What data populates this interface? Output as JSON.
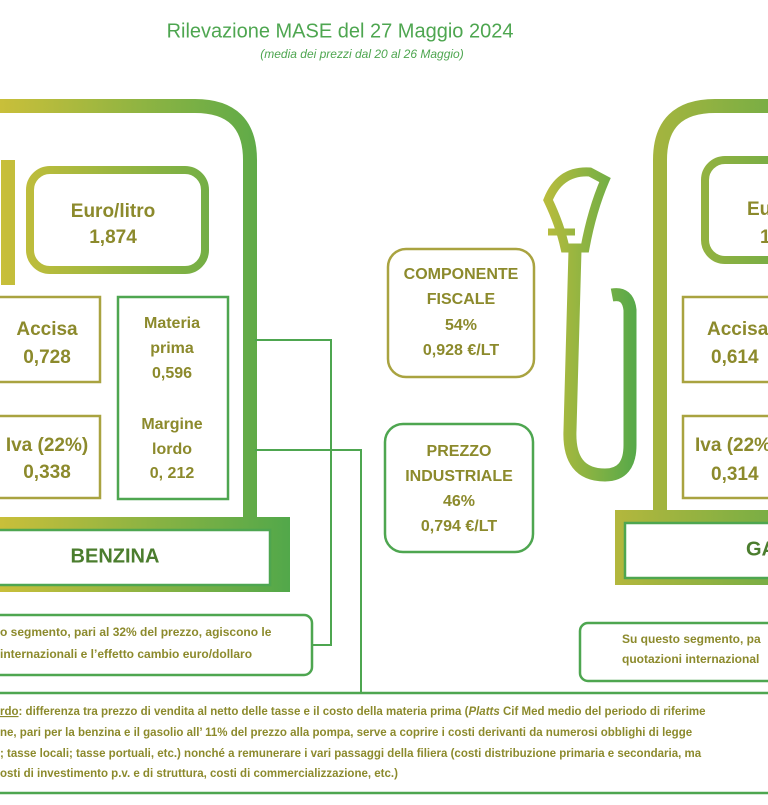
{
  "header": {
    "title": "Rilevazione MASE del 27 Maggio 2024",
    "subtitle": "(media dei prezzi dal 20 al 26 Maggio)"
  },
  "benzina": {
    "display": {
      "unit": "Euro/litro",
      "price": "1,874"
    },
    "accisa": {
      "label": "Accisa",
      "value": "0,728"
    },
    "iva": {
      "label": "Iva (22%)",
      "value": "0,338"
    },
    "materia_prima": {
      "label_lines": [
        "Materia",
        "prima"
      ],
      "value": "0,596"
    },
    "margine_lordo": {
      "label_lines": [
        "Margine",
        "lordo"
      ],
      "value": "0, 212"
    },
    "name": "BENZINA",
    "note_lines": [
      "o segmento, pari al 32% del prezzo, agiscono le",
      "internazionali e l’effetto cambio euro/dollaro"
    ]
  },
  "center": {
    "componente_fiscale": {
      "label_lines": [
        "COMPONENTE",
        "FISCALE"
      ],
      "percent": "54%",
      "amount": "0,928 €/LT"
    },
    "prezzo_industriale": {
      "label_lines": [
        "PREZZO",
        "INDUSTRIALE"
      ],
      "percent": "46%",
      "amount": "0,794 €/LT"
    }
  },
  "gasolio": {
    "display": {
      "unit": "Eur",
      "price": "1"
    },
    "accisa": {
      "label": "Accisa",
      "value": "0,614"
    },
    "iva": {
      "label": "Iva (22%",
      "value": "0,314"
    },
    "name": "GA",
    "note_lines": [
      "Su questo segmento, pa",
      "quotazioni internazional"
    ]
  },
  "footnote": {
    "lines": [
      [
        "rdo",
        ": differenza tra prezzo di vendita al netto delle tasse e il costo della materia prima (",
        "Platts",
        " Cif Med medio del periodo di riferime"
      ],
      [
        "ne, pari per la benzina e il gasolio all’ 11% del prezzo alla pompa, serve a coprire i costi derivanti da numerosi obblighi di legge"
      ],
      [
        "; tasse locali; tasse portuali, etc.) nonché a remunerare i vari passaggi della filiera (costi distribuzione primaria e secondaria, ma"
      ],
      [
        "osti di investimento p.v. e di struttura, costi di commercializzazione, etc.)"
      ]
    ]
  }
}
